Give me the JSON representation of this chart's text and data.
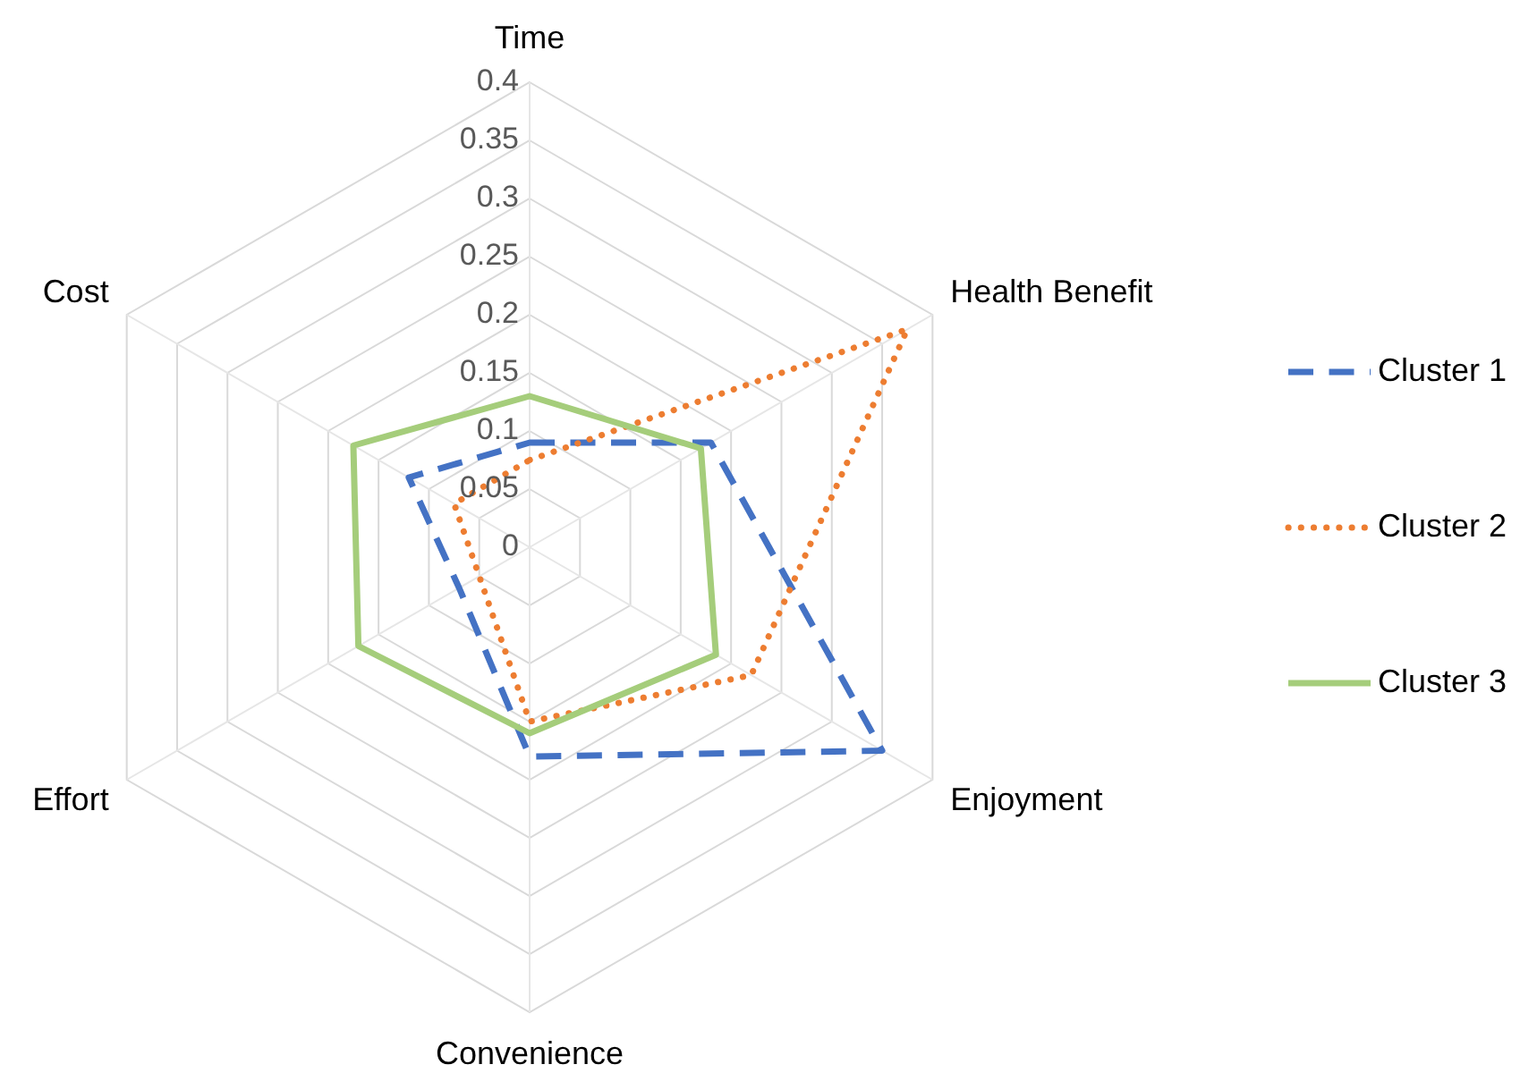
{
  "chart_data": {
    "type": "radar",
    "categories": [
      "Time",
      "Health Benefit",
      "Enjoyment",
      "Convenience",
      "Effort",
      "Cost"
    ],
    "ylim": [
      0,
      0.4
    ],
    "yticks": [
      0,
      0.05,
      0.1,
      0.15,
      0.2,
      0.25,
      0.3,
      0.35,
      0.4
    ],
    "grid": true,
    "legend": "right",
    "marker": "none",
    "series": [
      {
        "name": "Cluster 1",
        "color": "#4472c4",
        "line_style": "dashed",
        "values": [
          0.09,
          0.18,
          0.35,
          0.18,
          0.07,
          0.12
        ]
      },
      {
        "name": "Cluster 2",
        "color": "#ed7d31",
        "line_style": "dotted",
        "values": [
          0.075,
          0.375,
          0.22,
          0.15,
          0.05,
          0.075
        ]
      },
      {
        "name": "Cluster 3",
        "color": "#a5cd7b",
        "line_style": "solid",
        "values": [
          0.13,
          0.17,
          0.185,
          0.16,
          0.17,
          0.175
        ]
      }
    ]
  }
}
